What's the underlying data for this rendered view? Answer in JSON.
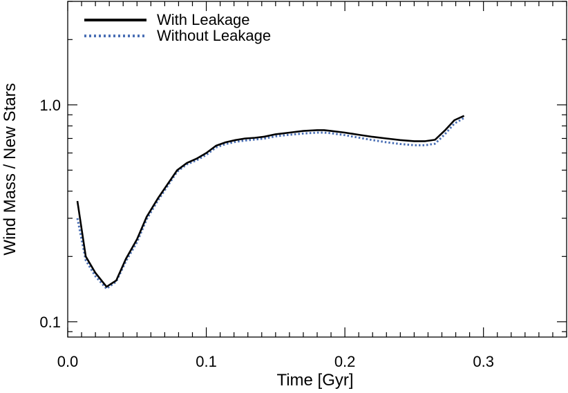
{
  "chart_data": {
    "type": "line",
    "xlabel": "Time  [Gyr]",
    "ylabel": "Wind Mass / New Stars",
    "xlim": [
      0.0,
      0.36
    ],
    "ylim": [
      0.085,
      3.0
    ],
    "yscale": "log",
    "grid": false,
    "legend_position": "top-left",
    "x_ticks": [
      {
        "value": 0.0,
        "label": "0.0"
      },
      {
        "value": 0.1,
        "label": "0.1"
      },
      {
        "value": 0.2,
        "label": "0.2"
      },
      {
        "value": 0.3,
        "label": "0.3"
      }
    ],
    "y_ticks": [
      {
        "value": 0.1,
        "label": "0.1"
      },
      {
        "value": 1.0,
        "label": "1.0"
      }
    ],
    "series": [
      {
        "name": "With Leakage",
        "color": "#000000",
        "dash": "solid",
        "x": [
          0.007,
          0.013,
          0.02,
          0.028,
          0.035,
          0.042,
          0.05,
          0.057,
          0.065,
          0.072,
          0.079,
          0.086,
          0.093,
          0.1,
          0.107,
          0.114,
          0.121,
          0.128,
          0.135,
          0.142,
          0.15,
          0.16,
          0.17,
          0.18,
          0.185,
          0.19,
          0.2,
          0.21,
          0.22,
          0.23,
          0.24,
          0.25,
          0.258,
          0.265,
          0.272,
          0.279,
          0.286
        ],
        "y": [
          0.36,
          0.2,
          0.168,
          0.145,
          0.155,
          0.195,
          0.24,
          0.305,
          0.37,
          0.43,
          0.5,
          0.54,
          0.565,
          0.6,
          0.648,
          0.672,
          0.688,
          0.7,
          0.705,
          0.714,
          0.732,
          0.745,
          0.758,
          0.765,
          0.765,
          0.758,
          0.745,
          0.728,
          0.712,
          0.7,
          0.688,
          0.68,
          0.68,
          0.69,
          0.76,
          0.85,
          0.89
        ]
      },
      {
        "name": "Without Leakage",
        "color": "#4a6fb5",
        "dash": "dotted",
        "x": [
          0.007,
          0.013,
          0.02,
          0.028,
          0.035,
          0.042,
          0.05,
          0.057,
          0.065,
          0.072,
          0.079,
          0.086,
          0.093,
          0.1,
          0.107,
          0.114,
          0.121,
          0.128,
          0.135,
          0.142,
          0.15,
          0.16,
          0.17,
          0.18,
          0.185,
          0.19,
          0.2,
          0.21,
          0.22,
          0.23,
          0.24,
          0.25,
          0.258,
          0.265,
          0.272,
          0.279,
          0.286
        ],
        "y": [
          0.3,
          0.192,
          0.162,
          0.142,
          0.153,
          0.19,
          0.233,
          0.297,
          0.362,
          0.422,
          0.492,
          0.532,
          0.555,
          0.588,
          0.636,
          0.66,
          0.675,
          0.685,
          0.692,
          0.7,
          0.716,
          0.728,
          0.738,
          0.745,
          0.745,
          0.74,
          0.725,
          0.706,
          0.688,
          0.672,
          0.66,
          0.652,
          0.652,
          0.662,
          0.73,
          0.82,
          0.87
        ]
      }
    ]
  }
}
